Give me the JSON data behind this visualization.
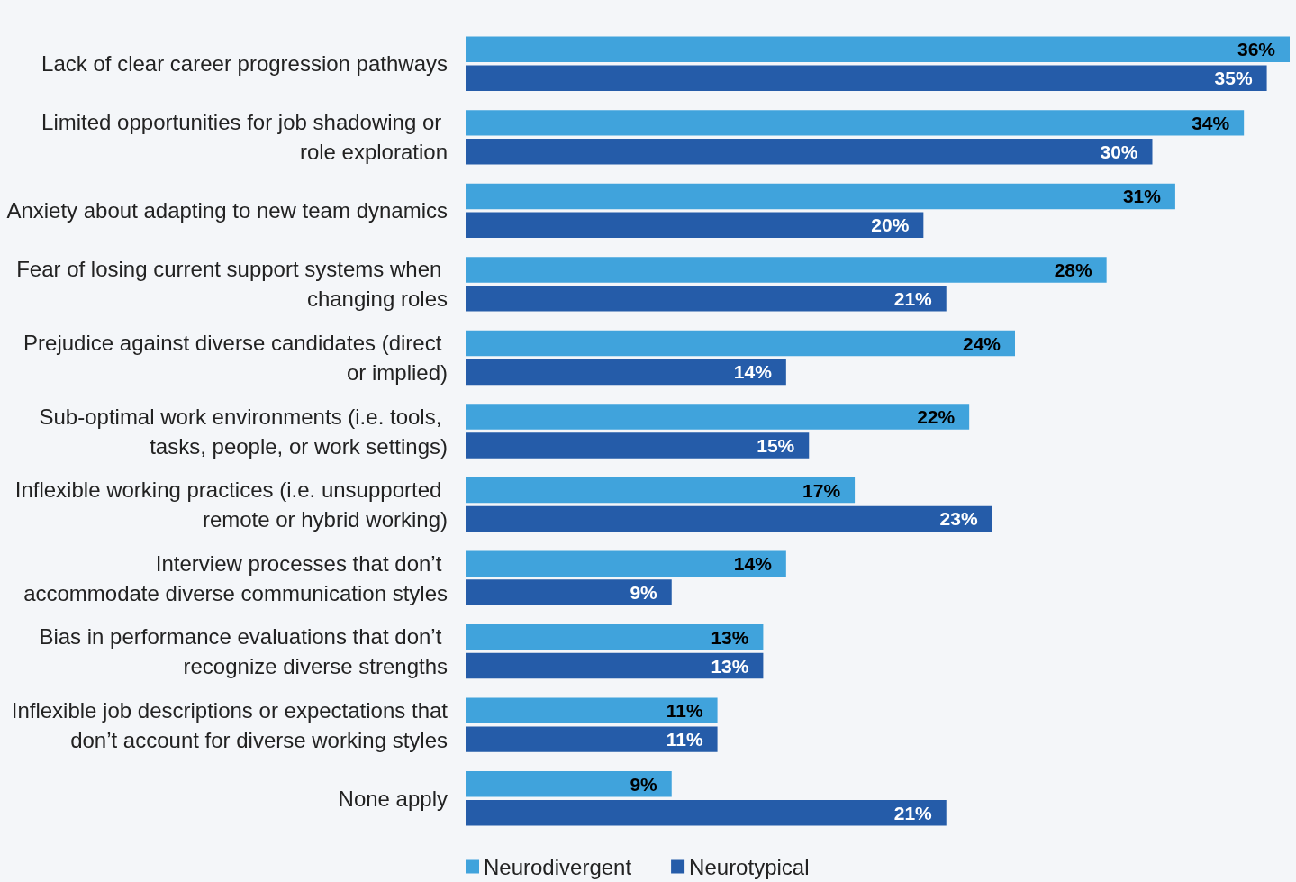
{
  "chart_data": {
    "type": "bar",
    "orientation": "horizontal",
    "categories": [
      "Lack of clear career progression pathways",
      "Limited opportunities for job shadowing or role exploration",
      "Anxiety about adapting to new team dynamics",
      "Fear of losing current support systems when changing roles",
      "Prejudice against diverse candidates (direct or implied)",
      "Sub-optimal work environments (i.e. tools, tasks, people, or work settings)",
      "Inflexible working practices (i.e. unsupported remote or hybrid working)",
      "Interview processes that don’t accommodate diverse communication styles",
      "Bias in performance evaluations that don’t recognize diverse strengths",
      "Inflexible job descriptions or expectations that don’t account for diverse working styles",
      "None apply"
    ],
    "series": [
      {
        "name": "Neurodivergent",
        "color": "#40a3dc",
        "values": [
          36,
          34,
          31,
          28,
          24,
          22,
          17,
          14,
          13,
          11,
          9
        ],
        "value_labels": [
          "36%",
          "34%",
          "31%",
          "28%",
          "24%",
          "22%",
          "17%",
          "14%",
          "13%",
          "11%",
          "9%"
        ]
      },
      {
        "name": "Neurotypical",
        "color": "#255ca9",
        "values": [
          35,
          30,
          20,
          21,
          14,
          15,
          23,
          9,
          13,
          11,
          21
        ],
        "value_labels": [
          "35%",
          "30%",
          "20%",
          "21%",
          "14%",
          "15%",
          "23%",
          "9%",
          "13%",
          "11%",
          "21%"
        ]
      }
    ],
    "legend": "bottom"
  }
}
